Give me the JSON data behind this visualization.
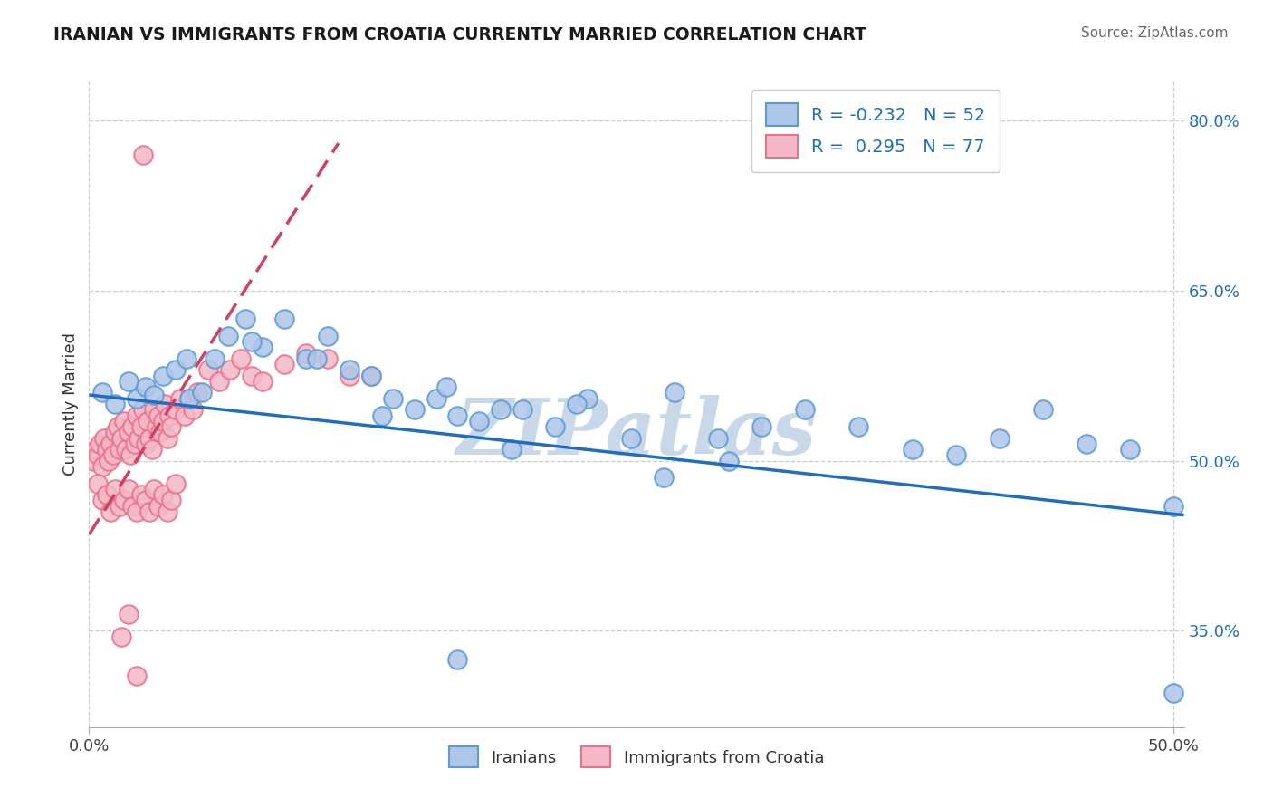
{
  "title": "IRANIAN VS IMMIGRANTS FROM CROATIA CURRENTLY MARRIED CORRELATION CHART",
  "source": "Source: ZipAtlas.com",
  "ylabel": "Currently Married",
  "xmin": 0.0,
  "xmax": 0.505,
  "ymin": 0.265,
  "ymax": 0.835,
  "ytick_vals": [
    0.35,
    0.5,
    0.65,
    0.8
  ],
  "ytick_labels": [
    "35.0%",
    "50.0%",
    "65.0%",
    "80.0%"
  ],
  "xtick_vals": [
    0.0,
    0.5
  ],
  "xtick_labels": [
    "0.0%",
    "50.0%"
  ],
  "legend_R_blue": "-0.232",
  "legend_N_blue": "52",
  "legend_R_pink": "0.295",
  "legend_N_pink": "77",
  "series_labels": [
    "Iranians",
    "Immigrants from Croatia"
  ],
  "blue_face": "#aec6e8",
  "blue_edge": "#5b9bd5",
  "blue_line_color": "#1f6dbf",
  "pink_face": "#f4b8c8",
  "pink_edge": "#e8728a",
  "pink_line_color": "#d04060",
  "watermark": "ZIPatlas",
  "watermark_color": "#c8d8e8",
  "blue_trend_x0": 0.0,
  "blue_trend_x1": 0.505,
  "blue_trend_y0": 0.558,
  "blue_trend_y1": 0.452,
  "pink_trend_x0": 0.0,
  "pink_trend_x1": 0.115,
  "pink_trend_y0": 0.435,
  "pink_trend_y1": 0.78,
  "iranians_x": [
    0.006,
    0.012,
    0.018,
    0.022,
    0.026,
    0.03,
    0.034,
    0.04,
    0.046,
    0.052,
    0.058,
    0.064,
    0.072,
    0.08,
    0.09,
    0.1,
    0.11,
    0.12,
    0.13,
    0.14,
    0.15,
    0.16,
    0.17,
    0.18,
    0.19,
    0.2,
    0.215,
    0.23,
    0.25,
    0.27,
    0.29,
    0.31,
    0.33,
    0.355,
    0.38,
    0.4,
    0.42,
    0.44,
    0.46,
    0.48,
    0.5,
    0.045,
    0.075,
    0.105,
    0.135,
    0.165,
    0.195,
    0.225,
    0.265,
    0.295,
    0.17,
    0.5
  ],
  "iranians_y": [
    0.56,
    0.55,
    0.57,
    0.555,
    0.565,
    0.558,
    0.575,
    0.58,
    0.555,
    0.56,
    0.59,
    0.61,
    0.625,
    0.6,
    0.625,
    0.59,
    0.61,
    0.58,
    0.575,
    0.555,
    0.545,
    0.555,
    0.54,
    0.535,
    0.545,
    0.545,
    0.53,
    0.555,
    0.52,
    0.56,
    0.52,
    0.53,
    0.545,
    0.53,
    0.51,
    0.505,
    0.52,
    0.545,
    0.515,
    0.51,
    0.46,
    0.59,
    0.605,
    0.59,
    0.54,
    0.565,
    0.51,
    0.55,
    0.485,
    0.5,
    0.325,
    0.295
  ],
  "croatia_x": [
    0.002,
    0.003,
    0.004,
    0.005,
    0.006,
    0.007,
    0.008,
    0.009,
    0.01,
    0.011,
    0.012,
    0.013,
    0.014,
    0.015,
    0.016,
    0.017,
    0.018,
    0.019,
    0.02,
    0.021,
    0.022,
    0.023,
    0.024,
    0.025,
    0.026,
    0.027,
    0.028,
    0.029,
    0.03,
    0.031,
    0.032,
    0.033,
    0.034,
    0.035,
    0.036,
    0.037,
    0.038,
    0.04,
    0.042,
    0.044,
    0.046,
    0.048,
    0.05,
    0.055,
    0.06,
    0.065,
    0.07,
    0.075,
    0.08,
    0.09,
    0.1,
    0.11,
    0.12,
    0.13,
    0.004,
    0.006,
    0.008,
    0.01,
    0.012,
    0.014,
    0.016,
    0.018,
    0.02,
    0.022,
    0.024,
    0.026,
    0.028,
    0.03,
    0.032,
    0.034,
    0.036,
    0.038,
    0.04,
    0.015,
    0.018,
    0.022,
    0.025
  ],
  "croatia_y": [
    0.5,
    0.51,
    0.505,
    0.515,
    0.495,
    0.52,
    0.51,
    0.5,
    0.515,
    0.505,
    0.525,
    0.53,
    0.51,
    0.52,
    0.535,
    0.51,
    0.525,
    0.505,
    0.53,
    0.515,
    0.54,
    0.52,
    0.53,
    0.545,
    0.515,
    0.535,
    0.52,
    0.51,
    0.545,
    0.53,
    0.54,
    0.525,
    0.535,
    0.55,
    0.52,
    0.54,
    0.53,
    0.545,
    0.555,
    0.54,
    0.555,
    0.545,
    0.56,
    0.58,
    0.57,
    0.58,
    0.59,
    0.575,
    0.57,
    0.585,
    0.595,
    0.59,
    0.575,
    0.575,
    0.48,
    0.465,
    0.47,
    0.455,
    0.475,
    0.46,
    0.465,
    0.475,
    0.46,
    0.455,
    0.47,
    0.465,
    0.455,
    0.475,
    0.46,
    0.47,
    0.455,
    0.465,
    0.48,
    0.345,
    0.365,
    0.31,
    0.77
  ]
}
